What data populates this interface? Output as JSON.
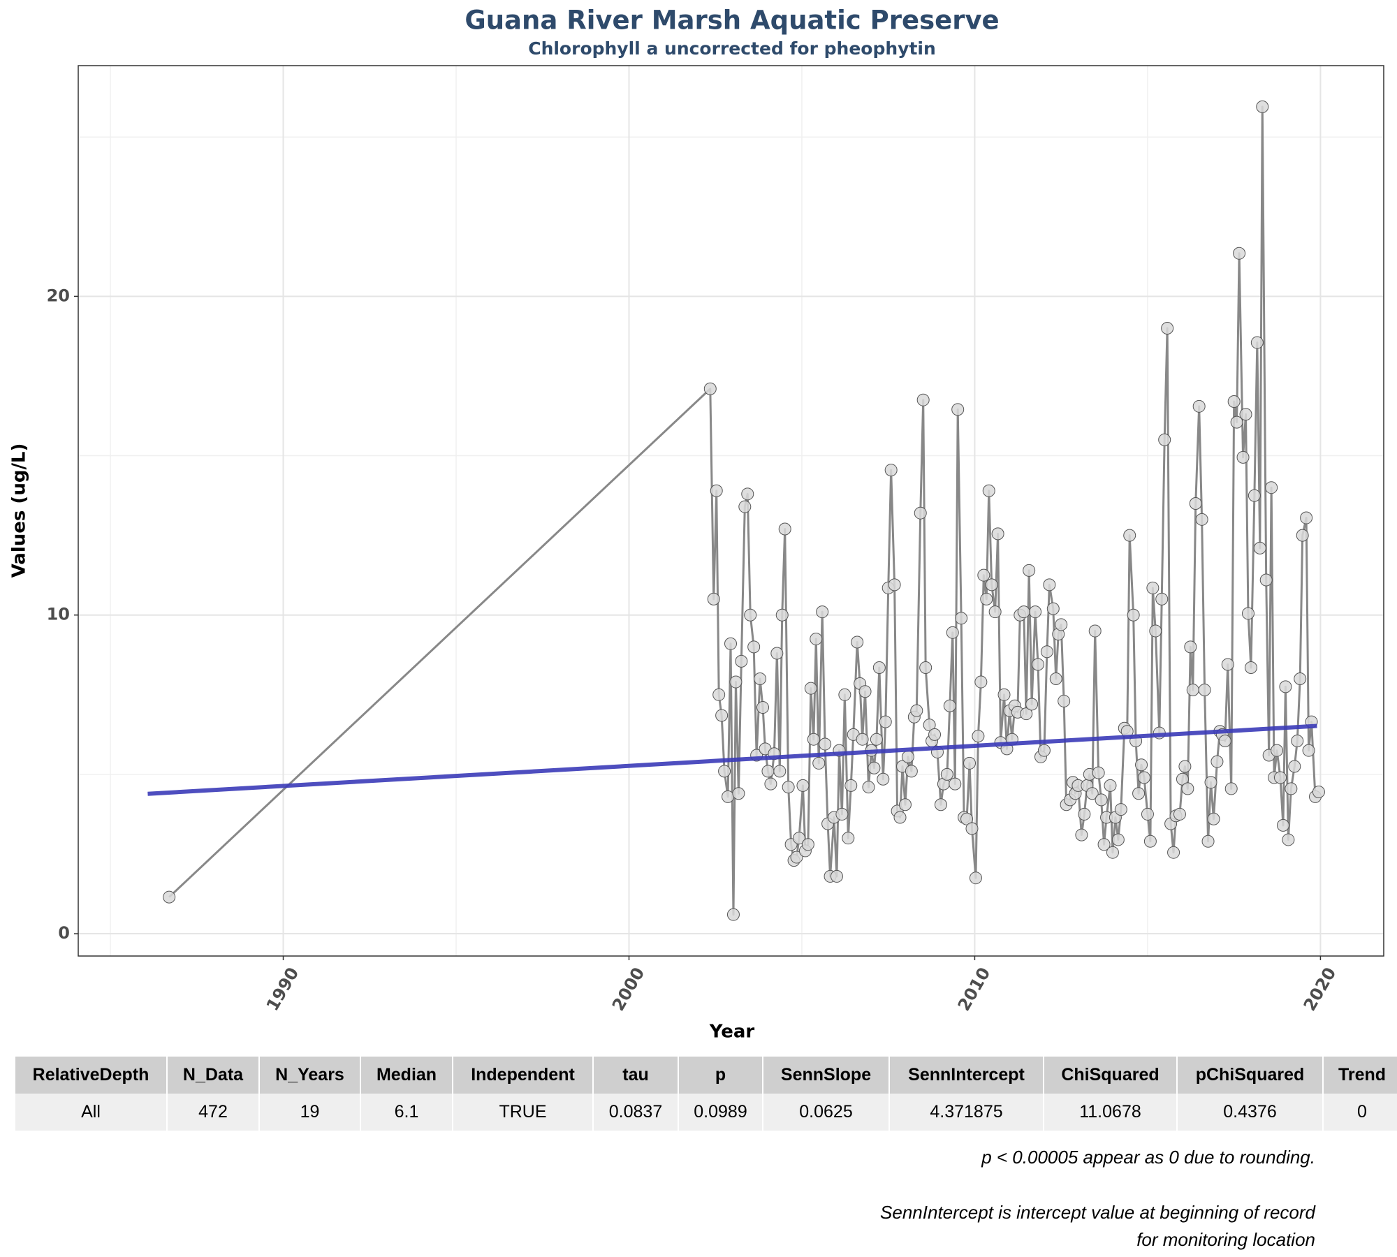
{
  "chart_data": {
    "type": "line",
    "title": "Guana River Marsh Aquatic Preserve",
    "subtitle": "Chlorophyll a uncorrected for pheophytin",
    "x_label": "Year",
    "y_label": "Values (ug/L)",
    "xlim": [
      1984.07,
      2021.83
    ],
    "xticks": [
      1990,
      2000,
      2010,
      2020
    ],
    "ylim": [
      -0.7,
      27.24
    ],
    "yticks": [
      0,
      10,
      20
    ],
    "grid": true,
    "color": "#888888",
    "point_color": "#d9d9d9",
    "x": [
      1986.7,
      2002.35,
      2002.45,
      2002.53,
      2002.6,
      2002.68,
      2002.76,
      2002.86,
      2002.94,
      2003.02,
      2003.09,
      2003.17,
      2003.25,
      2003.35,
      2003.43,
      2003.51,
      2003.61,
      2003.69,
      2003.79,
      2003.87,
      2003.94,
      2004.02,
      2004.1,
      2004.2,
      2004.28,
      2004.36,
      2004.43,
      2004.51,
      2004.61,
      2004.69,
      2004.77,
      2004.85,
      2004.92,
      2005.03,
      2005.1,
      2005.18,
      2005.26,
      2005.34,
      2005.41,
      2005.49,
      2005.59,
      2005.67,
      2005.75,
      2005.82,
      2005.93,
      2006.01,
      2006.08,
      2006.16,
      2006.24,
      2006.34,
      2006.42,
      2006.49,
      2006.6,
      2006.68,
      2006.75,
      2006.83,
      2006.93,
      2007.01,
      2007.09,
      2007.16,
      2007.24,
      2007.35,
      2007.42,
      2007.5,
      2007.58,
      2007.68,
      2007.76,
      2007.84,
      2007.91,
      2007.99,
      2008.07,
      2008.17,
      2008.25,
      2008.32,
      2008.43,
      2008.51,
      2008.58,
      2008.69,
      2008.76,
      2008.84,
      2008.92,
      2009.02,
      2009.1,
      2009.2,
      2009.28,
      2009.36,
      2009.43,
      2009.51,
      2009.61,
      2009.69,
      2009.77,
      2009.85,
      2009.92,
      2010.03,
      2010.1,
      2010.18,
      2010.26,
      2010.34,
      2010.41,
      2010.49,
      2010.59,
      2010.67,
      2010.75,
      2010.85,
      2010.93,
      2011.01,
      2011.08,
      2011.16,
      2011.24,
      2011.31,
      2011.42,
      2011.49,
      2011.57,
      2011.65,
      2011.75,
      2011.83,
      2011.91,
      2012.01,
      2012.09,
      2012.16,
      2012.27,
      2012.35,
      2012.42,
      2012.5,
      2012.58,
      2012.65,
      2012.76,
      2012.84,
      2012.91,
      2012.99,
      2013.09,
      2013.17,
      2013.25,
      2013.32,
      2013.4,
      2013.48,
      2013.58,
      2013.66,
      2013.74,
      2013.81,
      2013.92,
      2013.99,
      2014.07,
      2014.15,
      2014.23,
      2014.33,
      2014.41,
      2014.48,
      2014.59,
      2014.66,
      2014.74,
      2014.82,
      2014.9,
      2015.0,
      2015.08,
      2015.15,
      2015.23,
      2015.34,
      2015.41,
      2015.49,
      2015.57,
      2015.67,
      2015.75,
      2015.82,
      2015.93,
      2016.01,
      2016.08,
      2016.16,
      2016.24,
      2016.31,
      2016.39,
      2016.49,
      2016.57,
      2016.65,
      2016.75,
      2016.83,
      2016.91,
      2017.01,
      2017.09,
      2017.16,
      2017.24,
      2017.32,
      2017.42,
      2017.5,
      2017.58,
      2017.65,
      2017.76,
      2017.84,
      2017.91,
      2017.99,
      2018.09,
      2018.17,
      2018.25,
      2018.32,
      2018.43,
      2018.51,
      2018.58,
      2018.66,
      2018.74,
      2018.84,
      2018.92,
      2018.99,
      2019.07,
      2019.15,
      2019.25,
      2019.33,
      2019.41,
      2019.48,
      2019.59,
      2019.66,
      2019.74,
      2019.85,
      2019.95
    ],
    "values": [
      1.15,
      17.1,
      10.5,
      13.9,
      7.5,
      6.85,
      5.1,
      4.3,
      9.1,
      0.6,
      7.9,
      4.4,
      8.55,
      13.4,
      13.8,
      10.0,
      9.0,
      5.6,
      8.0,
      7.1,
      5.8,
      5.1,
      4.7,
      5.65,
      8.8,
      5.1,
      10.0,
      12.7,
      4.6,
      2.8,
      2.3,
      2.4,
      3.0,
      4.65,
      2.6,
      2.8,
      7.7,
      6.1,
      9.25,
      5.35,
      10.1,
      5.95,
      3.45,
      1.8,
      3.65,
      1.8,
      5.75,
      3.75,
      7.5,
      3.0,
      4.65,
      6.25,
      9.15,
      7.85,
      6.1,
      7.6,
      4.6,
      5.75,
      5.2,
      6.1,
      8.35,
      4.85,
      6.65,
      10.85,
      14.55,
      10.95,
      3.85,
      3.65,
      5.25,
      4.05,
      5.55,
      5.1,
      6.8,
      7.0,
      13.2,
      16.75,
      8.35,
      6.55,
      6.05,
      6.25,
      5.7,
      4.05,
      4.7,
      5.0,
      7.15,
      9.45,
      4.7,
      16.45,
      9.9,
      3.65,
      3.6,
      5.35,
      3.3,
      1.75,
      6.2,
      7.9,
      11.25,
      10.5,
      13.9,
      10.95,
      10.1,
      12.55,
      6.0,
      7.5,
      5.8,
      7.0,
      6.1,
      7.15,
      6.95,
      10.0,
      10.1,
      6.9,
      11.4,
      7.2,
      10.1,
      8.45,
      5.55,
      5.75,
      8.85,
      10.95,
      10.2,
      8.0,
      9.4,
      9.7,
      7.3,
      4.05,
      4.2,
      4.75,
      4.4,
      4.65,
      3.1,
      3.75,
      4.65,
      5.0,
      4.4,
      9.5,
      5.05,
      4.2,
      2.8,
      3.65,
      4.65,
      2.55,
      3.65,
      2.95,
      3.9,
      6.45,
      6.35,
      12.5,
      10.0,
      6.05,
      4.4,
      5.3,
      4.9,
      3.75,
      2.9,
      10.85,
      9.5,
      6.3,
      10.5,
      15.5,
      19.0,
      3.45,
      2.55,
      3.7,
      3.75,
      4.85,
      5.25,
      4.55,
      9.0,
      7.65,
      13.5,
      16.55,
      13.0,
      7.65,
      2.9,
      4.75,
      3.6,
      5.4,
      6.35,
      6.25,
      6.05,
      8.45,
      4.55,
      16.7,
      16.05,
      21.35,
      14.95,
      16.3,
      10.05,
      8.35,
      13.75,
      18.55,
      12.1,
      25.95,
      11.1,
      5.6,
      14.0,
      4.9,
      5.75,
      4.9,
      3.4,
      7.75,
      2.95,
      4.55,
      5.25,
      6.05,
      8.0,
      12.5,
      13.05,
      5.75,
      6.65,
      4.3,
      4.45
    ],
    "trend": {
      "x": [
        1986.08,
        2019.9
      ],
      "values": [
        4.39,
        6.52
      ],
      "color": "#3b3bb8"
    }
  },
  "table": {
    "columns": [
      "RelativeDepth",
      "N_Data",
      "N_Years",
      "Median",
      "Independent",
      "tau",
      "p",
      "SennSlope",
      "SennIntercept",
      "ChiSquared",
      "pChiSquared",
      "Trend"
    ],
    "rows": [
      [
        "All",
        "472",
        "19",
        "6.1",
        "TRUE",
        "0.0837",
        "0.0989",
        "0.0625",
        "4.371875",
        "11.0678",
        "0.4376",
        "0"
      ]
    ]
  },
  "notes": [
    "p < 0.00005 appear as 0 due to rounding.",
    "SennIntercept is intercept value at beginning of record for monitoring location"
  ]
}
